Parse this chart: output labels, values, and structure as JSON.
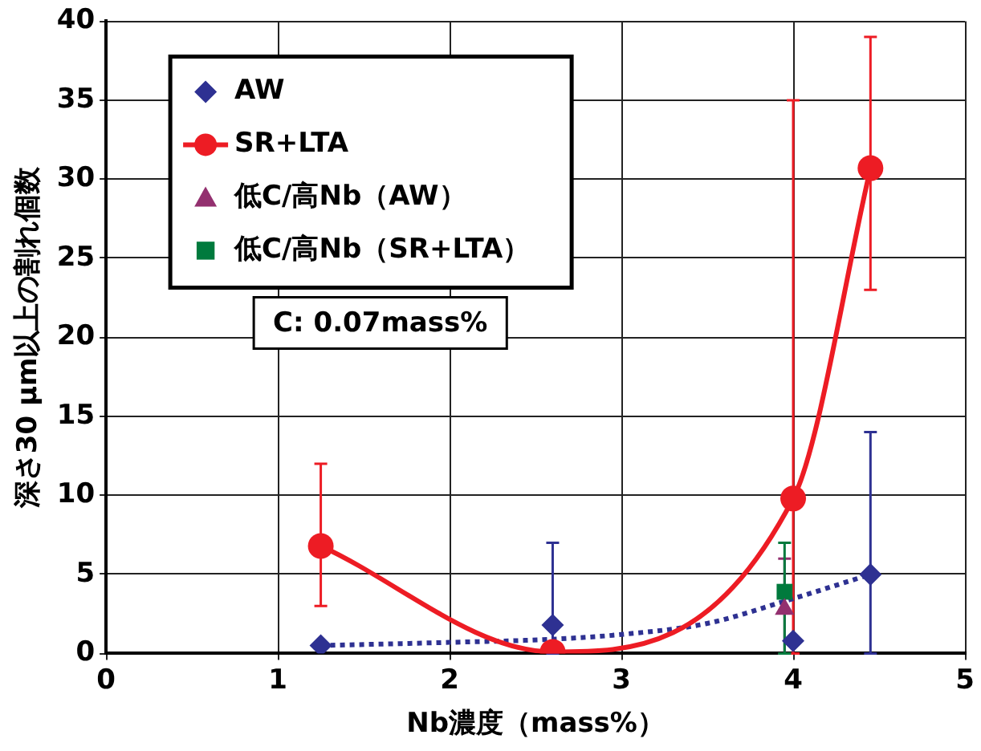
{
  "chart_data": {
    "type": "scatter",
    "xlabel": "Nb濃度（mass%）",
    "ylabel": "深さ30 μm以上の割れ個数",
    "annotations": [
      "C: 0.07mass%"
    ],
    "xlim": [
      0,
      5
    ],
    "xticks": [
      0,
      1,
      2,
      3,
      4,
      5
    ],
    "ylim": [
      0,
      40
    ],
    "yticks": [
      0,
      5,
      10,
      15,
      20,
      25,
      30,
      35,
      40
    ],
    "grid": true,
    "legend": "top left",
    "series": [
      {
        "name": "AW",
        "type": "scatter",
        "marker": "diamond",
        "color": "#2e3192",
        "x": [
          1.25,
          2.6,
          4.0,
          4.45
        ],
        "values": [
          0.5,
          1.8,
          0.8,
          5.0
        ],
        "errors": [
          null,
          [
            0,
            7
          ],
          null,
          [
            0,
            14
          ]
        ]
      },
      {
        "name": "SR+LTA",
        "type": "line",
        "marker": "circle",
        "line_style": "solid",
        "color": "#ed1c24",
        "x": [
          1.25,
          2.6,
          4.0,
          4.45
        ],
        "values": [
          6.8,
          0.1,
          9.8,
          30.7
        ],
        "errors": [
          [
            3,
            12
          ],
          null,
          [
            0,
            35
          ],
          [
            23,
            39
          ]
        ]
      },
      {
        "name": "低C/高Nb（AW）",
        "type": "scatter",
        "marker": "triangle",
        "color": "#93306f",
        "x": [
          3.95
        ],
        "values": [
          2.8
        ],
        "errors": [
          [
            0,
            6
          ]
        ]
      },
      {
        "name": "低C/高Nb（SR+LTA）",
        "type": "scatter",
        "marker": "square",
        "color": "#007a3d",
        "x": [
          3.95
        ],
        "values": [
          3.9
        ],
        "errors": [
          [
            0,
            7
          ]
        ]
      },
      {
        "type": "line",
        "marker": "none",
        "line_style": "dotted",
        "color": "#2e3192",
        "x": [
          1.25,
          2.0,
          2.6,
          3.0,
          3.5,
          3.95,
          4.45
        ],
        "values": [
          0.5,
          0.7,
          0.9,
          1.2,
          1.9,
          3.3,
          5.0
        ]
      }
    ]
  }
}
